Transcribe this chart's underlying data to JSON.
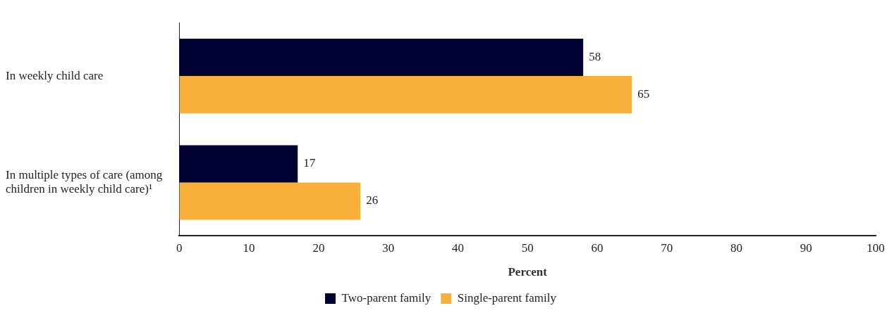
{
  "chart_data": {
    "type": "bar",
    "orientation": "horizontal",
    "xlabel": "Percent",
    "categories": [
      "In weekly child care",
      "In multiple types of care (among children in weekly child care)¹"
    ],
    "series": [
      {
        "name": "Two-parent family",
        "color": "#000033",
        "values": [
          58,
          17
        ]
      },
      {
        "name": "Single-parent family",
        "color": "#f9b03b",
        "values": [
          65,
          26
        ]
      }
    ],
    "xlim": [
      0,
      100
    ],
    "xticks": [
      0,
      10,
      20,
      30,
      40,
      50,
      60,
      70,
      80,
      90,
      100
    ],
    "grid": false,
    "legend": "bottom",
    "data_labels": true
  }
}
